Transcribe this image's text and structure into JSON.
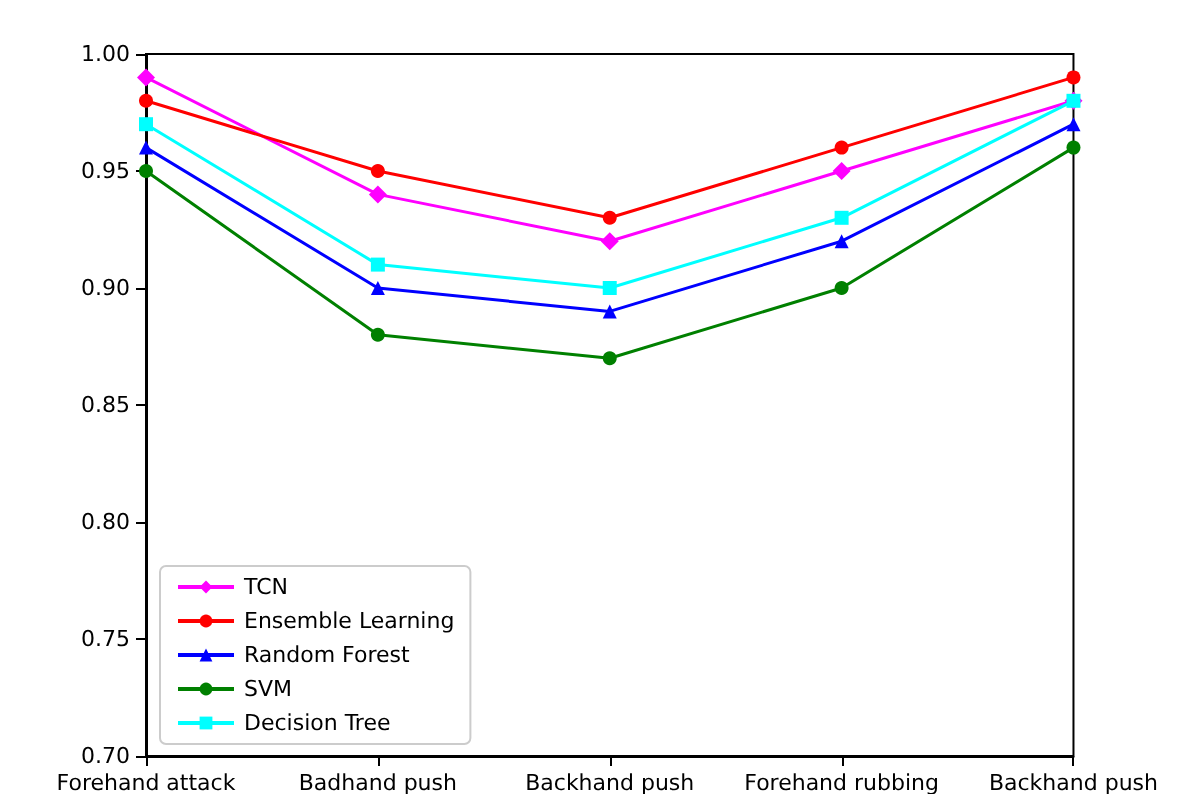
{
  "chart_data": {
    "type": "line",
    "categories": [
      "Forehand attack",
      "Badhand push",
      "Backhand push",
      "Forehand rubbing",
      "Backhand push"
    ],
    "ylim": [
      0.7,
      1.0
    ],
    "yticks": [
      {
        "value": 0.7,
        "label": "0.70"
      },
      {
        "value": 0.75,
        "label": "0.75"
      },
      {
        "value": 0.8,
        "label": "0.80"
      },
      {
        "value": 0.85,
        "label": "0.85"
      },
      {
        "value": 0.9,
        "label": "0.90"
      },
      {
        "value": 0.95,
        "label": "0.95"
      },
      {
        "value": 1.0,
        "label": "1.00"
      }
    ],
    "grid": false,
    "legend": "bottom left",
    "series": [
      {
        "name": "TCN",
        "color": "#ff00ff",
        "marker": "diamond",
        "values": [
          0.99,
          0.94,
          0.92,
          0.95,
          0.98
        ]
      },
      {
        "name": "Ensemble Learning",
        "color": "#ff0000",
        "marker": "circle",
        "values": [
          0.98,
          0.95,
          0.93,
          0.96,
          0.99
        ]
      },
      {
        "name": "Random Forest",
        "color": "#0000ff",
        "marker": "triangle",
        "values": [
          0.96,
          0.9,
          0.89,
          0.92,
          0.97
        ]
      },
      {
        "name": "SVM",
        "color": "#008000",
        "marker": "circle",
        "values": [
          0.95,
          0.88,
          0.87,
          0.9,
          0.96
        ]
      },
      {
        "name": "Decision Tree",
        "color": "#00ffff",
        "marker": "square",
        "values": [
          0.97,
          0.91,
          0.9,
          0.93,
          0.98
        ]
      }
    ]
  }
}
